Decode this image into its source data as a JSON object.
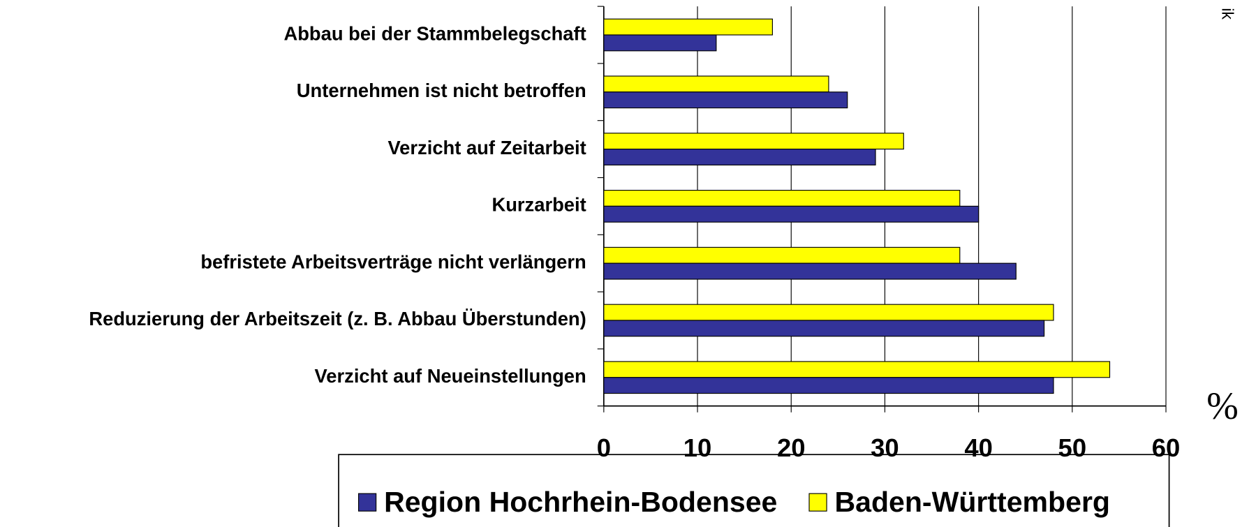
{
  "chart_data": {
    "type": "hbar",
    "categories": [
      "Abbau bei der Stammbelegschaft",
      "Unternehmen ist nicht betroffen",
      "Verzicht auf Zeitarbeit",
      "Kurzarbeit",
      "befristete Arbeitsverträge nicht verlängern",
      "Reduzierung der Arbeitszeit (z. B. Abbau Überstunden)",
      "Verzicht auf Neueinstellungen"
    ],
    "series": [
      {
        "name": "Region Hochrhein-Bodensee",
        "color": "#333399",
        "values": [
          12,
          26,
          29,
          40,
          44,
          47,
          48
        ]
      },
      {
        "name": "Baden-Württemberg",
        "color": "#ffff00",
        "values": [
          18,
          24,
          32,
          38,
          38,
          48,
          54
        ]
      }
    ],
    "xlim": [
      0,
      60
    ],
    "xticks": [
      0,
      10,
      20,
      30,
      40,
      50,
      60
    ],
    "grid": true,
    "unit_label": "%",
    "annotation": "ik"
  }
}
